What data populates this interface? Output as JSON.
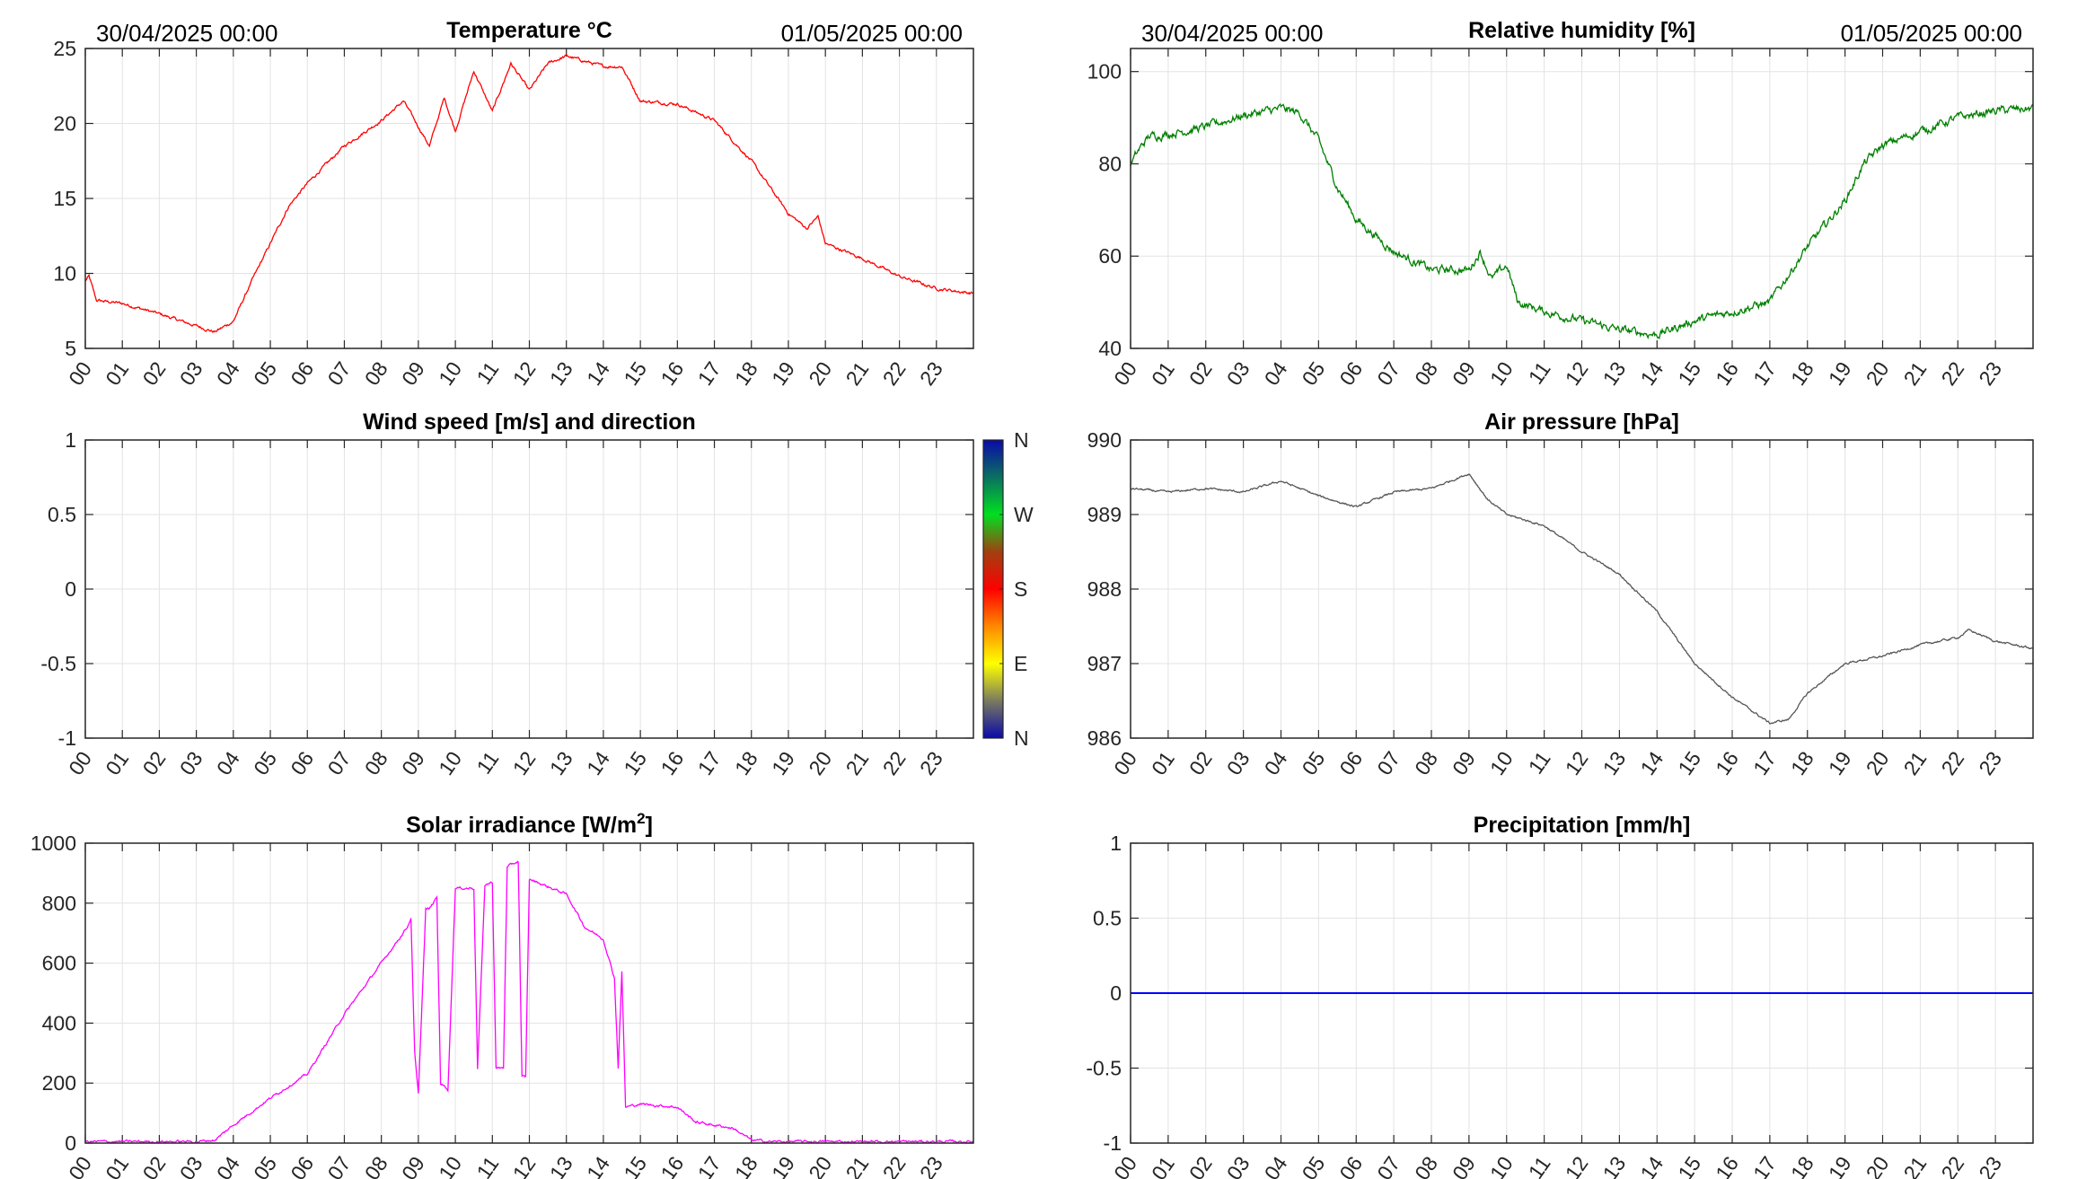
{
  "chart_data": [
    {
      "id": "temperature",
      "type": "line",
      "title": "Temperature °C",
      "date_start": "30/04/2025 00:00",
      "date_end": "01/05/2025 00:00",
      "ylim": [
        5,
        25
      ],
      "yticks": [
        "5",
        "10",
        "15",
        "20",
        "25"
      ],
      "xlim": [
        0,
        24
      ],
      "xticks": [
        "00",
        "01",
        "02",
        "03",
        "04",
        "05",
        "06",
        "07",
        "08",
        "09",
        "10",
        "11",
        "12",
        "13",
        "14",
        "15",
        "16",
        "17",
        "18",
        "19",
        "20",
        "21",
        "22",
        "23"
      ],
      "color": "#ff0000",
      "noise": 0.15,
      "x": [
        0,
        0.1,
        0.3,
        1,
        2,
        3,
        3.5,
        4,
        4.5,
        5,
        5.5,
        6,
        7,
        8,
        8.6,
        9.3,
        9.7,
        10,
        10.5,
        11,
        11.5,
        12,
        12.5,
        13,
        14,
        14.5,
        15,
        16,
        17,
        18,
        19,
        19.5,
        19.8,
        20,
        21,
        22,
        23,
        23.9
      ],
      "y": [
        9.5,
        9.8,
        8.2,
        8.0,
        7.3,
        6.5,
        6.1,
        6.8,
        9.5,
        12.0,
        14.5,
        16,
        18.5,
        20.2,
        21.5,
        18.5,
        21.7,
        19.5,
        23.5,
        20.8,
        24,
        22.2,
        24.0,
        24.5,
        23.8,
        23.8,
        21.5,
        21.3,
        20.2,
        17.5,
        14,
        13,
        13.8,
        12,
        11,
        9.8,
        9,
        8.7
      ]
    },
    {
      "id": "humidity",
      "type": "line",
      "title": "Relative humidity [%]",
      "date_start": "30/04/2025 00:00",
      "date_end": "01/05/2025 00:00",
      "ylim": [
        40,
        105
      ],
      "yticks": [
        "40",
        "60",
        "80",
        "100"
      ],
      "ytick_values": [
        40,
        60,
        80,
        100
      ],
      "xlim": [
        0,
        24
      ],
      "color": "#008000",
      "noise": 1.3,
      "x": [
        0,
        0.3,
        0.5,
        1,
        2,
        3,
        4,
        4.5,
        5,
        5.5,
        6,
        7,
        8,
        9,
        9.3,
        9.6,
        10,
        10.3,
        11,
        12,
        13,
        14,
        15,
        16,
        17,
        18,
        19,
        19.5,
        20,
        21,
        22,
        23,
        24
      ],
      "y": [
        80,
        84,
        86,
        86.5,
        88,
        90.5,
        92,
        91,
        85,
        75,
        68,
        61,
        57,
        57,
        61,
        55,
        58,
        50,
        48,
        46,
        44,
        43,
        46,
        48,
        50,
        62,
        72,
        80,
        84,
        87,
        90,
        91.5,
        92
      ]
    },
    {
      "id": "wind",
      "type": "line",
      "title": "Wind speed [m/s] and direction",
      "ylim": [
        -1,
        1
      ],
      "yticks": [
        "-1",
        "-0.5",
        "0",
        "0.5",
        "1"
      ],
      "ytick_values": [
        -1,
        -0.5,
        0,
        0.5,
        1
      ],
      "xlim": [
        0,
        24
      ],
      "x": [],
      "y": [],
      "colorbar": {
        "labels": [
          "N",
          "W",
          "S",
          "E",
          "N"
        ],
        "colors": [
          "#0a0aa8",
          "#00e020",
          "#ff0000",
          "#ffff00",
          "#0a0aa8"
        ]
      }
    },
    {
      "id": "pressure",
      "type": "line",
      "title": "Air pressure [hPa]",
      "ylim": [
        986,
        990
      ],
      "yticks": [
        "986",
        "987",
        "988",
        "989",
        "990"
      ],
      "ytick_values": [
        986,
        987,
        988,
        989,
        990
      ],
      "xlim": [
        0,
        24
      ],
      "color": "#555555",
      "noise": 0.02,
      "x": [
        0,
        1,
        2,
        3,
        4,
        5,
        6,
        7,
        8,
        9,
        9.5,
        10,
        11,
        12,
        13,
        14,
        15,
        16,
        17,
        17.5,
        18,
        19,
        20,
        21,
        22,
        22.3,
        23,
        24
      ],
      "y": [
        989.35,
        989.3,
        989.35,
        989.3,
        989.45,
        989.25,
        989.1,
        989.3,
        989.35,
        989.55,
        989.2,
        989.0,
        988.85,
        988.5,
        988.2,
        987.7,
        987.0,
        986.55,
        986.2,
        986.25,
        986.6,
        987.0,
        987.1,
        987.25,
        987.35,
        987.45,
        987.3,
        987.2
      ]
    },
    {
      "id": "solar",
      "type": "line",
      "title": "Solar irradiance [W/m",
      "title_sup": "2",
      "title_end": "]",
      "ylim": [
        0,
        1000
      ],
      "yticks": [
        "0",
        "200",
        "400",
        "600",
        "800",
        "1000"
      ],
      "ytick_values": [
        0,
        200,
        400,
        600,
        800,
        1000
      ],
      "xlim": [
        0,
        24
      ],
      "color": "#ff00ff",
      "noise": 6,
      "x": [
        0,
        3,
        3.5,
        4,
        5,
        6,
        7,
        8,
        8.7,
        8.8,
        8.9,
        9,
        9.2,
        9.3,
        9.5,
        9.6,
        9.8,
        10,
        10.5,
        10.6,
        10.8,
        11,
        11.1,
        11.3,
        11.4,
        11.7,
        11.8,
        11.9,
        12,
        13,
        13.5,
        14,
        14.3,
        14.4,
        14.5,
        14.6,
        15,
        16,
        16.5,
        17,
        17.5,
        18,
        18.5,
        24
      ],
      "y": [
        5,
        5,
        10,
        60,
        150,
        230,
        430,
        600,
        720,
        750,
        300,
        160,
        780,
        780,
        820,
        200,
        180,
        850,
        850,
        250,
        860,
        870,
        250,
        250,
        920,
        940,
        220,
        220,
        880,
        830,
        720,
        680,
        550,
        250,
        570,
        120,
        130,
        120,
        70,
        60,
        50,
        10,
        5,
        5
      ]
    },
    {
      "id": "precipitation",
      "type": "line",
      "title": "Precipitation [mm/h]",
      "ylim": [
        -1,
        1
      ],
      "yticks": [
        "-1",
        "-0.5",
        "0",
        "0.5",
        "1"
      ],
      "ytick_values": [
        -1,
        -0.5,
        0,
        0.5,
        1
      ],
      "xlim": [
        0,
        24
      ],
      "color": "#0000ff",
      "noise": 0,
      "x": [
        0,
        24
      ],
      "y": [
        0,
        0
      ]
    }
  ]
}
